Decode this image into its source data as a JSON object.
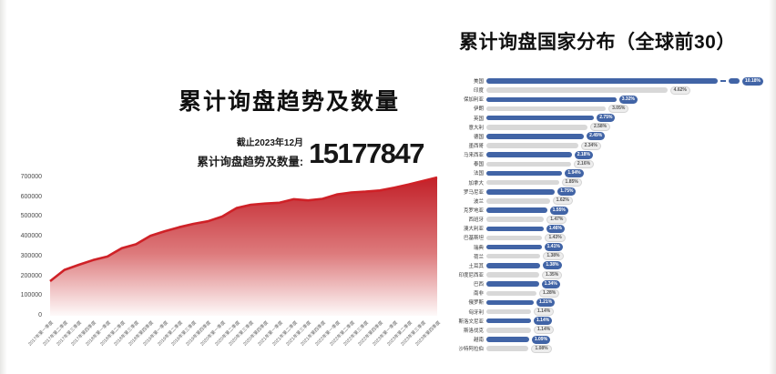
{
  "left_panel": {
    "title": "累计询盘趋势及数量",
    "asof": "截止2023年12月",
    "total_label": "累计询盘趋势及数量:",
    "total_value": "15177847"
  },
  "right_panel": {
    "title": "累计询盘国家分布（全球前30）"
  },
  "chart_data": [
    {
      "id": "trend_area",
      "type": "area",
      "title": "累计询盘趋势及数量",
      "x": [
        "2017年第一季度",
        "2017年第二季度",
        "2017年第三季度",
        "2017年第四季度",
        "2018年第一季度",
        "2018年第二季度",
        "2018年第三季度",
        "2018年第四季度",
        "2019年第一季度",
        "2019年第二季度",
        "2019年第三季度",
        "2019年第四季度",
        "2020年第一季度",
        "2020年第二季度",
        "2020年第三季度",
        "2020年第四季度",
        "2021年第一季度",
        "2021年第二季度",
        "2021年第三季度",
        "2021年第四季度",
        "2022年第一季度",
        "2022年第二季度",
        "2022年第三季度",
        "2022年第四季度",
        "2023年第一季度",
        "2023年第二季度",
        "2023年第三季度",
        "2023年第四季度"
      ],
      "values": [
        175000,
        232000,
        258000,
        282000,
        300000,
        342000,
        362000,
        405000,
        428000,
        448000,
        465000,
        478000,
        502000,
        545000,
        562000,
        568000,
        572000,
        590000,
        584000,
        592000,
        614000,
        624000,
        628000,
        634000,
        648000,
        664000,
        682000,
        700000
      ],
      "ylim": [
        0,
        700000
      ],
      "ytick_labels": [
        "0",
        "100000",
        "200000",
        "300000",
        "400000",
        "500000",
        "600000",
        "700000"
      ],
      "grid": false,
      "legend": "none",
      "line_color": "#cf2127",
      "area_color_top": "#c22028",
      "area_color_mid": "#dd7a7c",
      "area_color_bottom": "#fefafa"
    },
    {
      "id": "country_bars",
      "type": "bar",
      "orientation": "horizontal",
      "title": "累计询盘国家分布（全球前30）",
      "unit": "%",
      "categories": [
        "美国",
        "印度",
        "保加利亚",
        "伊朗",
        "英国",
        "意大利",
        "德国",
        "墨西哥",
        "马来西亚",
        "泰国",
        "法国",
        "加拿大",
        "罗马尼亚",
        "波兰",
        "克罗地亚",
        "西班牙",
        "澳大利亚",
        "巴基斯坦",
        "瑞典",
        "荷兰",
        "土耳其",
        "印度尼西亚",
        "巴西",
        "南非",
        "俄罗斯",
        "匈牙利",
        "斯洛文尼亚",
        "斯洛伐克",
        "越南",
        "沙特阿拉伯"
      ],
      "values": [
        10.18,
        4.62,
        3.32,
        3.05,
        2.75,
        2.58,
        2.49,
        2.34,
        2.18,
        2.16,
        1.94,
        1.85,
        1.75,
        1.62,
        1.55,
        1.47,
        1.46,
        1.43,
        1.41,
        1.38,
        1.38,
        1.35,
        1.34,
        1.28,
        1.21,
        1.14,
        1.14,
        1.14,
        1.09,
        1.08
      ],
      "value_labels": [
        "10.18%",
        "4.62%",
        "3.32%",
        "3.05%",
        "2.75%",
        "2.58%",
        "2.49%",
        "2.34%",
        "2.18%",
        "2.16%",
        "1.94%",
        "1.85%",
        "1.75%",
        "1.62%",
        "1.55%",
        "1.47%",
        "1.46%",
        "1.43%",
        "1.41%",
        "1.38%",
        "1.38%",
        "1.35%",
        "1.34%",
        "1.28%",
        "1.21%",
        "1.14%",
        "1.14%",
        "1.14%",
        "1.09%",
        "1.08%"
      ],
      "bar_color_odd_rows": "#4164a6",
      "bar_color_even_rows": "#d8d8d8",
      "axis_break_first_bar": true
    }
  ]
}
